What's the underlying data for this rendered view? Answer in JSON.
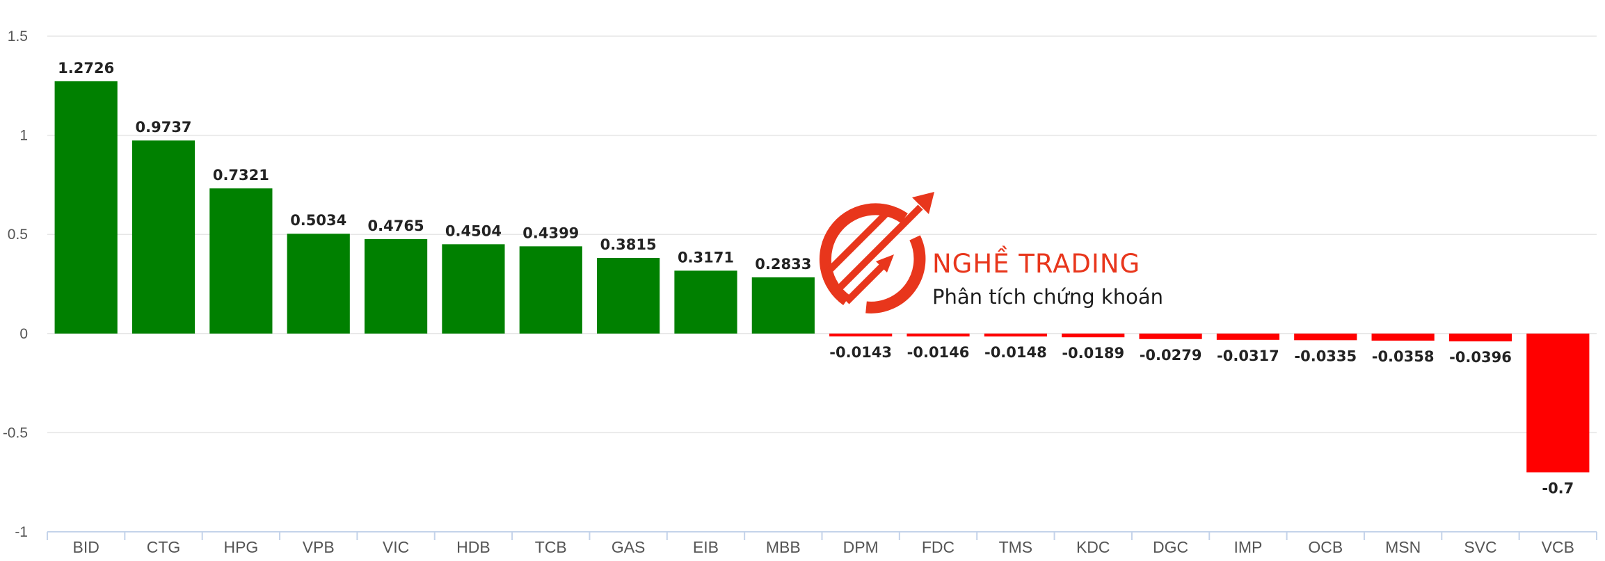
{
  "chart_data": {
    "type": "bar",
    "title": "",
    "xlabel": "",
    "ylabel": "",
    "ylim": [
      -1,
      1.5
    ],
    "yticks": [
      1.5,
      1,
      0.5,
      0,
      -0.5,
      -1
    ],
    "ytick_labels": [
      "1.5",
      "1",
      "0.5",
      "0",
      "-0.5",
      "-1"
    ],
    "grid": true,
    "categories": [
      "BID",
      "CTG",
      "HPG",
      "VPB",
      "VIC",
      "HDB",
      "TCB",
      "GAS",
      "EIB",
      "MBB",
      "DPM",
      "FDC",
      "TMS",
      "KDC",
      "DGC",
      "IMP",
      "OCB",
      "MSN",
      "SVC",
      "VCB"
    ],
    "values": [
      1.2726,
      0.9737,
      0.7321,
      0.5034,
      0.4765,
      0.4504,
      0.4399,
      0.3815,
      0.3171,
      0.2833,
      -0.0143,
      -0.0146,
      -0.0148,
      -0.0189,
      -0.0279,
      -0.0317,
      -0.0335,
      -0.0358,
      -0.0396,
      -0.7
    ],
    "value_labels": [
      "1.2726",
      "0.9737",
      "0.7321",
      "0.5034",
      "0.4765",
      "0.4504",
      "0.4399",
      "0.3815",
      "0.3171",
      "0.2833",
      "-0.0143",
      "-0.0146",
      "-0.0148",
      "-0.0189",
      "-0.0279",
      "-0.0317",
      "-0.0335",
      "-0.0358",
      "-0.0396",
      "-0.7"
    ],
    "colors": {
      "positive": "#008000",
      "negative": "#ff0000"
    }
  },
  "watermark": {
    "title": "NGHỀ TRADING",
    "subtitle": "Phân tích chứng khoán",
    "icon": "rising-arrows-logo",
    "color": "#e8361c"
  }
}
